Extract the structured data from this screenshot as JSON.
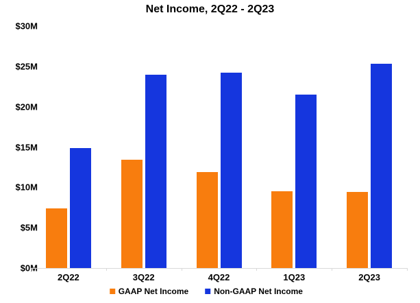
{
  "title": "Net Income, 2Q22 - 2Q23",
  "chart_data": {
    "type": "bar",
    "title": "Net Income, 2Q22 - 2Q23",
    "categories": [
      "2Q22",
      "3Q22",
      "4Q22",
      "1Q23",
      "2Q23"
    ],
    "series": [
      {
        "name": "GAAP Net Income",
        "color": "#F87D0E",
        "values": [
          7.4,
          13.4,
          11.9,
          9.5,
          9.4
        ]
      },
      {
        "name": "Non-GAAP Net Income",
        "color": "#1536DE",
        "values": [
          14.9,
          24.0,
          24.2,
          21.5,
          25.3
        ]
      }
    ],
    "xlabel": "",
    "ylabel": "",
    "ylim": [
      0,
      30
    ],
    "ytick_step": 5,
    "yticks": [
      0,
      5,
      10,
      15,
      20,
      25,
      30
    ],
    "ytick_labels": [
      "$0M",
      "$5M",
      "$10M",
      "$15M",
      "$20M",
      "$25M",
      "$30M"
    ],
    "grid": false,
    "plot_border": false,
    "legend_position": "bottom",
    "axis_line_color": "#D9D9D9",
    "text_color": "#000000",
    "background_color": "#FFFFFF"
  }
}
